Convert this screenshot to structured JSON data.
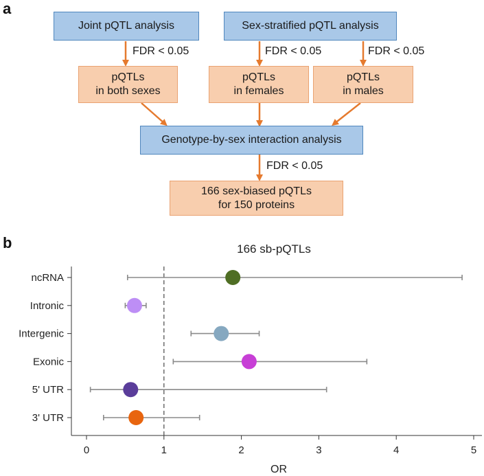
{
  "panel_a": {
    "letter": "a",
    "joint_box": "Joint pQTL analysis",
    "sex_strat_box": "Sex-stratified pQTL analysis",
    "fdr_label": "FDR < 0.05",
    "both_sexes_box": "pQTLs\nin both sexes",
    "females_box": "pQTLs\nin females",
    "males_box": "pQTLs\nin males",
    "interaction_box": "Genotype-by-sex interaction analysis",
    "result_box": "166 sex-biased pQTLs\nfor 150 proteins",
    "colors": {
      "blue_fill": "#a9c8e8",
      "blue_border": "#4f86bd",
      "orange_fill": "#f8ceae",
      "orange_border": "#e9a271",
      "arrow": "#e57a2e"
    }
  },
  "panel_b": {
    "letter": "b"
  },
  "chart_data": {
    "type": "scatter",
    "title": "166 sb-pQTLs",
    "xlabel": "OR",
    "ylabel": "",
    "xlim": [
      -0.2,
      5.2
    ],
    "xticks": [
      0,
      1,
      2,
      3,
      4,
      5
    ],
    "reference_line": 1,
    "grid": false,
    "categories": [
      "ncRNA",
      "Intronic",
      "Intergenic",
      "Exonic",
      "5' UTR",
      "3' UTR"
    ],
    "points": [
      {
        "label": "ncRNA",
        "or": 1.89,
        "lower": 0.53,
        "upper": 4.85,
        "color": "#4f6e24"
      },
      {
        "label": "Intronic",
        "or": 0.62,
        "lower": 0.5,
        "upper": 0.77,
        "color": "#bd8ef5"
      },
      {
        "label": "Intergenic",
        "or": 1.74,
        "lower": 1.35,
        "upper": 2.23,
        "color": "#86a8c0"
      },
      {
        "label": "Exonic",
        "or": 2.1,
        "lower": 1.12,
        "upper": 3.62,
        "color": "#c73fd6"
      },
      {
        "label": "5' UTR",
        "or": 0.57,
        "lower": 0.05,
        "upper": 3.1,
        "color": "#5a3d9a"
      },
      {
        "label": "3' UTR",
        "or": 0.64,
        "lower": 0.22,
        "upper": 1.46,
        "color": "#e8650f"
      }
    ]
  }
}
